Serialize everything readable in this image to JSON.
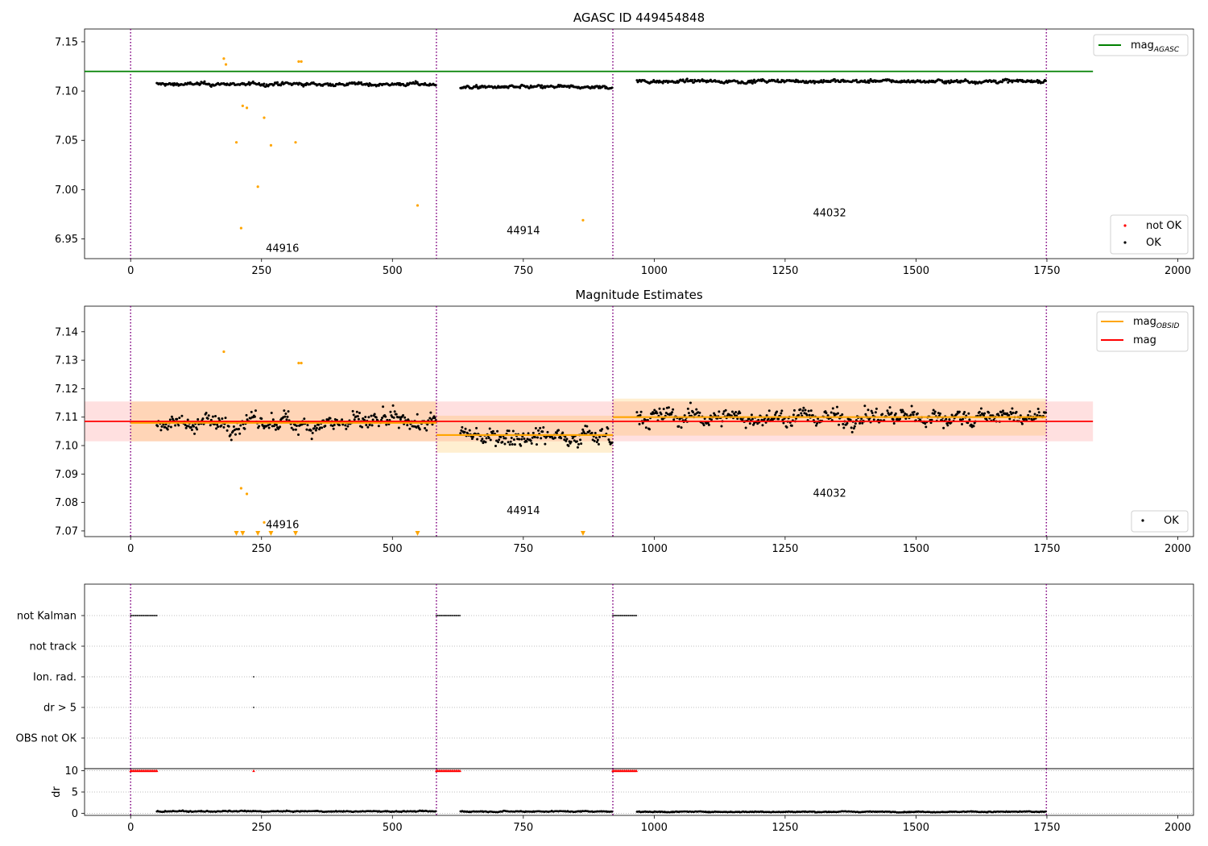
{
  "chart_data": [
    {
      "type": "scatter",
      "title": "AGASC ID 449454848",
      "xlim": [
        -88,
        2030
      ],
      "ylim": [
        6.93,
        7.163
      ],
      "xticks": [
        0,
        250,
        500,
        750,
        1000,
        1250,
        1500,
        1750,
        2000
      ],
      "yticks": [
        6.95,
        7.0,
        7.05,
        7.1,
        7.15
      ],
      "ytick_labels": [
        "6.95",
        "7.00",
        "7.05",
        "7.10",
        "7.15"
      ],
      "obsid_boundaries": [
        0,
        584,
        921,
        1749
      ],
      "obsid_labels": [
        {
          "text": "44916",
          "x": 290,
          "y": 6.937
        },
        {
          "text": "44914",
          "x": 750,
          "y": 6.955
        },
        {
          "text": "44032",
          "x": 1335,
          "y": 6.973
        }
      ],
      "reference_line": {
        "name": "mag",
        "subscript": "AGASC",
        "y": 7.12,
        "x0": -88,
        "x1": 1838,
        "color": "#008000"
      },
      "outlier_points": {
        "color": "#ffa500",
        "x": [
          178,
          182,
          202,
          211,
          214,
          222,
          243,
          255,
          268,
          315,
          321,
          326,
          548,
          864
        ],
        "y": [
          7.133,
          7.127,
          7.048,
          6.961,
          7.085,
          7.083,
          7.003,
          7.073,
          7.045,
          7.048,
          7.13,
          7.13,
          6.984,
          6.969
        ]
      },
      "ok_segments": [
        {
          "x0": 50,
          "x1": 584,
          "base": 7.107,
          "spread": 0.004
        },
        {
          "x0": 630,
          "x1": 921,
          "base": 7.104,
          "spread": 0.004
        },
        {
          "x0": 967,
          "x1": 1749,
          "base": 7.11,
          "spread": 0.004
        }
      ],
      "legend": {
        "upper": [
          {
            "label": "mag",
            "subscript": "AGASC",
            "color": "#008000",
            "kind": "line"
          }
        ],
        "lower": [
          {
            "label": "not OK",
            "color": "#ff0000",
            "kind": "dot"
          },
          {
            "label": "OK",
            "color": "#000000",
            "kind": "dot"
          }
        ]
      }
    },
    {
      "type": "scatter",
      "title": "Magnitude Estimates",
      "xlim": [
        -88,
        2030
      ],
      "ylim": [
        7.068,
        7.149
      ],
      "xticks": [
        0,
        250,
        500,
        750,
        1000,
        1250,
        1500,
        1750,
        2000
      ],
      "yticks": [
        7.07,
        7.08,
        7.09,
        7.1,
        7.11,
        7.12,
        7.13,
        7.14
      ],
      "ytick_labels": [
        "7.07",
        "7.08",
        "7.09",
        "7.10",
        "7.11",
        "7.12",
        "7.13",
        "7.14"
      ],
      "obsid_boundaries": [
        0,
        584,
        921,
        1749
      ],
      "obsid_labels": [
        {
          "text": "44916",
          "x": 290,
          "y": 7.071
        },
        {
          "text": "44914",
          "x": 750,
          "y": 7.076
        },
        {
          "text": "44032",
          "x": 1335,
          "y": 7.082
        }
      ],
      "mag": {
        "name": "mag",
        "y": 7.1085,
        "band": [
          7.1015,
          7.1155
        ],
        "x0": -88,
        "x1": 1838,
        "color": "#ff0000"
      },
      "mag_obsid": [
        {
          "name": "mag",
          "subscript": "OBSID",
          "x0": 0,
          "x1": 584,
          "y": 7.108,
          "band": [
            7.1015,
            7.1155
          ]
        },
        {
          "name": "mag",
          "subscript": "OBSID",
          "x0": 584,
          "x1": 921,
          "y": 7.1037,
          "band": [
            7.0975,
            7.1105
          ]
        },
        {
          "name": "mag",
          "subscript": "OBSID",
          "x0": 921,
          "x1": 1749,
          "y": 7.11,
          "band": [
            7.1035,
            7.1165
          ]
        }
      ],
      "outlier_points": {
        "color": "#ffa500",
        "x": [
          178,
          211,
          222,
          255,
          321,
          326
        ],
        "y": [
          7.133,
          7.085,
          7.083,
          7.073,
          7.129,
          7.129
        ]
      },
      "lower_limit_markers": {
        "color": "#ffa500",
        "x": [
          202,
          214,
          243,
          268,
          315,
          548,
          864
        ]
      },
      "ok_segments": [
        {
          "x0": 50,
          "x1": 584,
          "base": 7.108,
          "spread": 0.0075
        },
        {
          "x0": 630,
          "x1": 921,
          "base": 7.1037,
          "spread": 0.0075
        },
        {
          "x0": 967,
          "x1": 1749,
          "base": 7.11,
          "spread": 0.0075
        }
      ],
      "legend": {
        "upper": [
          {
            "label": "mag",
            "subscript": "OBSID",
            "color": "#ffa500",
            "kind": "line"
          },
          {
            "label": "mag",
            "color": "#ff0000",
            "kind": "line"
          }
        ],
        "lower": [
          {
            "label": "OK",
            "color": "#000000",
            "kind": "dot"
          }
        ]
      }
    },
    {
      "type": "scatter",
      "title": "",
      "xlim": [
        -88,
        2030
      ],
      "rows": [
        "not Kalman",
        "not track",
        "Ion. rad.",
        "dr > 5",
        "OBS not OK"
      ],
      "obsid_boundaries": [
        0,
        584,
        921,
        1749
      ],
      "flags": {
        "not Kalman": [
          [
            0,
            50
          ],
          [
            584,
            630
          ],
          [
            921,
            967
          ]
        ],
        "not track": [],
        "Ion. rad.": [
          [
            235,
            235
          ]
        ],
        "dr > 5": [
          [
            235,
            235
          ]
        ],
        "OBS not OK": []
      }
    },
    {
      "type": "scatter",
      "title": "",
      "ylabel": "dr",
      "xlim": [
        -88,
        2030
      ],
      "ylim": [
        -0.5,
        10.5
      ],
      "xticks": [
        0,
        250,
        500,
        750,
        1000,
        1250,
        1500,
        1750,
        2000
      ],
      "yticks": [
        0,
        5,
        10
      ],
      "ytick_labels": [
        "0",
        "5",
        "10"
      ],
      "obsid_boundaries": [
        0,
        584,
        921,
        1749
      ],
      "saturated_markers": {
        "color": "#ff0000",
        "y": 10,
        "spans": [
          [
            0,
            50
          ],
          [
            584,
            630
          ],
          [
            921,
            967
          ],
          [
            235,
            235
          ]
        ]
      },
      "ok_segments": [
        {
          "x0": 50,
          "x1": 584,
          "base": 0.45,
          "spread": 0.3
        },
        {
          "x0": 630,
          "x1": 921,
          "base": 0.45,
          "spread": 0.3
        },
        {
          "x0": 967,
          "x1": 1749,
          "base": 0.35,
          "spread": 0.25
        }
      ]
    }
  ]
}
